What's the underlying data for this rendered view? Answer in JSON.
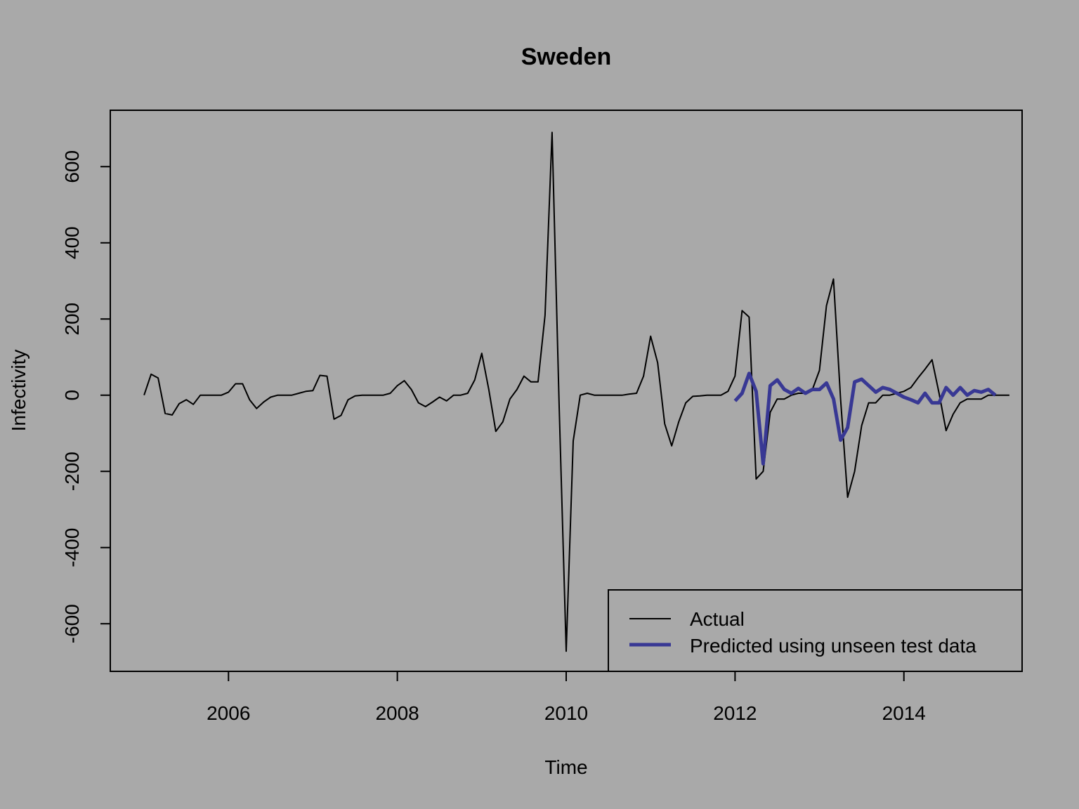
{
  "chart_data": {
    "type": "line",
    "title": "Sweden",
    "xlabel": "Time",
    "ylabel": "Infectivity",
    "xlim": [
      2004.6,
      2015.4
    ],
    "ylim": [
      -725,
      748
    ],
    "x_ticks": [
      2006,
      2008,
      2010,
      2012,
      2014
    ],
    "y_ticks": [
      -600,
      -400,
      -200,
      0,
      200,
      400,
      600
    ],
    "grid": false,
    "legend_position": "bottom-right",
    "colors": {
      "background": "#A9A9A9",
      "actual": "#000000",
      "predicted": "#383894"
    },
    "series": [
      {
        "name": "Actual",
        "color": "#000000",
        "x_start": 2005.0,
        "x_step": 0.08333,
        "values": [
          0,
          55,
          45,
          -48,
          -52,
          -22,
          -12,
          -24,
          0,
          0,
          0,
          0,
          8,
          30,
          30,
          -12,
          -35,
          -18,
          -5,
          0,
          0,
          0,
          5,
          10,
          12,
          52,
          50,
          -63,
          -53,
          -12,
          -2,
          0,
          0,
          0,
          0,
          5,
          25,
          38,
          15,
          -20,
          -30,
          -18,
          -5,
          -15,
          0,
          0,
          5,
          40,
          110,
          15,
          -95,
          -70,
          -10,
          15,
          50,
          35,
          35,
          210,
          690,
          -30,
          -672,
          -120,
          0,
          5,
          0,
          0,
          0,
          0,
          0,
          3,
          5,
          50,
          155,
          85,
          -75,
          -133,
          -70,
          -20,
          -3,
          -2,
          0,
          0,
          0,
          10,
          50,
          222,
          205,
          -220,
          -200,
          -45,
          -10,
          -10,
          0,
          5,
          5,
          15,
          65,
          235,
          305,
          -10,
          -268,
          -200,
          -80,
          -20,
          -20,
          0,
          0,
          5,
          10,
          20,
          45,
          68,
          93,
          5,
          -93,
          -50,
          -20,
          -10,
          -10,
          -10,
          0,
          0,
          0,
          0
        ]
      },
      {
        "name": "Predicted using unseen test data",
        "color": "#383894",
        "x_start": 2012.0,
        "x_step": 0.08333,
        "values": [
          -15,
          5,
          57,
          10,
          -180,
          25,
          40,
          15,
          5,
          18,
          5,
          15,
          15,
          32,
          -10,
          -118,
          -85,
          35,
          42,
          25,
          8,
          20,
          15,
          5,
          -5,
          -12,
          -20,
          5,
          -20,
          -20,
          20,
          0,
          20,
          0,
          12,
          8,
          15,
          0
        ]
      }
    ]
  }
}
